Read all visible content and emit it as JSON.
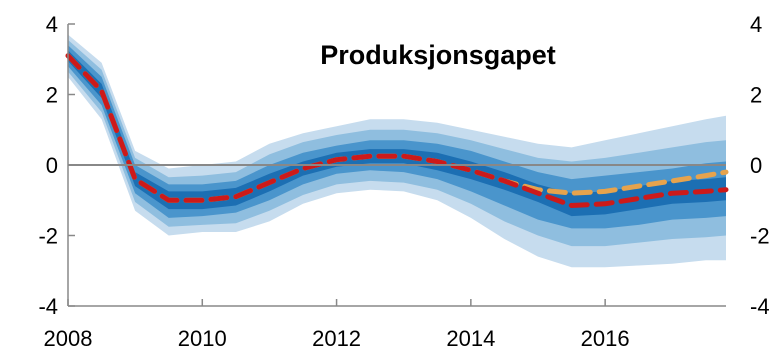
{
  "chart_data": {
    "type": "area",
    "title": "Produksjonsgapet",
    "xlabel": "",
    "ylabel": "",
    "xlim": [
      2008,
      2017.8
    ],
    "ylim": [
      -4,
      4
    ],
    "x_ticks": [
      "2008",
      "2010",
      "2012",
      "2014",
      "2016"
    ],
    "y_ticks": [
      "4",
      "2",
      "0",
      "-2",
      "-4"
    ],
    "y_ticks_right": [
      "4",
      "2",
      "0",
      "-2",
      "-4"
    ],
    "grid": false,
    "legend": "none",
    "x": [
      2008.0,
      2008.5,
      2009.0,
      2009.5,
      2010.0,
      2010.5,
      2011.0,
      2011.5,
      2012.0,
      2012.5,
      2013.0,
      2013.5,
      2014.0,
      2014.5,
      2015.0,
      2015.5,
      2016.0,
      2016.5,
      2017.0,
      2017.5,
      2017.8
    ],
    "series": [
      {
        "values": [
          3.1,
          2.1,
          -0.4,
          -1.0,
          -1.0,
          -0.9,
          -0.5,
          -0.1,
          0.15,
          0.25,
          0.25,
          0.1,
          -0.15,
          -0.45,
          -0.8,
          -1.15,
          -1.1,
          -0.95,
          -0.8,
          -0.75,
          -0.7
        ],
        "color": "#cc1a1a",
        "style": "dashed"
      },
      {
        "values": [
          3.1,
          2.1,
          -0.4,
          -1.0,
          -1.0,
          -0.9,
          -0.5,
          -0.1,
          0.15,
          0.25,
          0.25,
          0.1,
          -0.15,
          -0.45,
          -0.7,
          -0.8,
          -0.75,
          -0.6,
          -0.45,
          -0.3,
          -0.2
        ],
        "color": "#e6a34d",
        "style": "dashed"
      }
    ],
    "fan_bands": [
      {
        "color": "#c6dcee",
        "upper": [
          3.7,
          2.9,
          0.4,
          -0.1,
          0.0,
          0.1,
          0.6,
          0.9,
          1.1,
          1.3,
          1.3,
          1.2,
          1.0,
          0.8,
          0.6,
          0.5,
          0.7,
          0.9,
          1.1,
          1.3,
          1.4
        ],
        "lower": [
          2.5,
          1.3,
          -1.3,
          -2.0,
          -1.9,
          -1.9,
          -1.6,
          -1.1,
          -0.8,
          -0.7,
          -0.75,
          -1.0,
          -1.5,
          -2.1,
          -2.6,
          -2.9,
          -2.9,
          -2.85,
          -2.8,
          -2.7,
          -2.7
        ]
      },
      {
        "color": "#8fbedf",
        "upper": [
          3.55,
          2.7,
          0.2,
          -0.35,
          -0.3,
          -0.2,
          0.3,
          0.65,
          0.85,
          1.0,
          1.0,
          0.9,
          0.7,
          0.45,
          0.2,
          0.1,
          0.2,
          0.35,
          0.5,
          0.65,
          0.7
        ],
        "lower": [
          2.65,
          1.5,
          -1.05,
          -1.75,
          -1.7,
          -1.65,
          -1.3,
          -0.85,
          -0.55,
          -0.45,
          -0.5,
          -0.7,
          -1.1,
          -1.6,
          -2.0,
          -2.3,
          -2.3,
          -2.2,
          -2.1,
          -2.05,
          -2.0
        ]
      },
      {
        "color": "#4a95cc",
        "upper": [
          3.4,
          2.5,
          0.0,
          -0.55,
          -0.55,
          -0.45,
          0.0,
          0.35,
          0.55,
          0.7,
          0.7,
          0.6,
          0.4,
          0.1,
          -0.2,
          -0.4,
          -0.3,
          -0.2,
          -0.1,
          0.05,
          0.1
        ],
        "lower": [
          2.8,
          1.7,
          -0.8,
          -1.5,
          -1.45,
          -1.35,
          -1.0,
          -0.55,
          -0.25,
          -0.15,
          -0.2,
          -0.4,
          -0.75,
          -1.15,
          -1.55,
          -1.8,
          -1.8,
          -1.7,
          -1.55,
          -1.5,
          -1.45
        ]
      },
      {
        "color": "#1c6fb3",
        "upper": [
          3.25,
          2.3,
          -0.2,
          -0.75,
          -0.75,
          -0.65,
          -0.25,
          0.1,
          0.35,
          0.45,
          0.45,
          0.35,
          0.1,
          -0.2,
          -0.55,
          -0.8,
          -0.75,
          -0.6,
          -0.45,
          -0.4,
          -0.35
        ],
        "lower": [
          2.95,
          1.9,
          -0.6,
          -1.25,
          -1.25,
          -1.15,
          -0.75,
          -0.3,
          -0.05,
          0.05,
          0.05,
          -0.15,
          -0.4,
          -0.7,
          -1.05,
          -1.45,
          -1.4,
          -1.25,
          -1.1,
          -1.05,
          -1.0
        ]
      }
    ],
    "reference_line": {
      "y": 0,
      "color": "#888888"
    }
  }
}
